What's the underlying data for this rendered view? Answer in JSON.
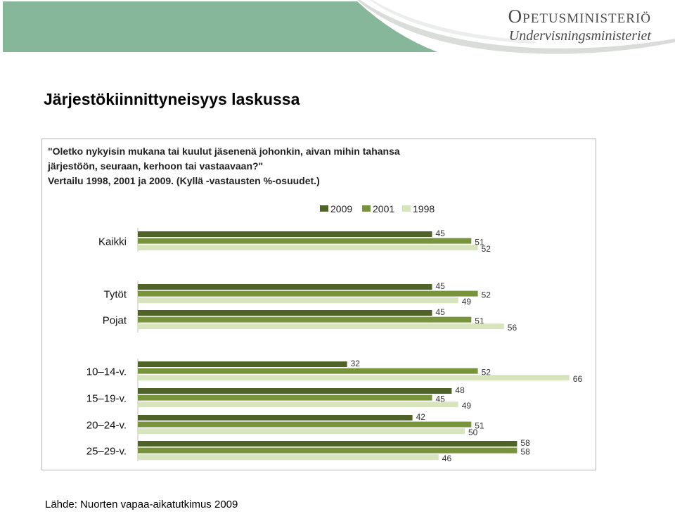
{
  "header": {
    "logo_line1": "Opetusministeriö",
    "logo_line2": "Undervisningsministeriet",
    "banner_color": "#86b79a"
  },
  "title": "Järjestökiinnittyneisyys laskussa",
  "question": {
    "line1": "\"Oletko nykyisin mukana tai kuulut jäsenenä johonkin, aivan mihin tahansa",
    "line2": "järjestöön, seuraan, kerhoon tai vastaavaan?\"",
    "line3": "Vertailu 1998, 2001 ja 2009. (Kyllä -vastausten %-osuudet.)"
  },
  "source": "Lähde: Nuorten vapaa-aikatutkimus 2009",
  "chart_data": {
    "type": "bar",
    "orientation": "horizontal",
    "categories": [
      "Kaikki",
      "Tytöt",
      "Pojat",
      "10–14-v.",
      "15–19-v.",
      "20–24-v.",
      "25–29-v."
    ],
    "groups": [
      [
        "Kaikki"
      ],
      [
        "Tytöt",
        "Pojat"
      ],
      [
        "10–14-v.",
        "15–19-v.",
        "20–24-v.",
        "25–29-v."
      ]
    ],
    "series": [
      {
        "name": "2009",
        "color": "#4f6228",
        "values": [
          45,
          45,
          45,
          32,
          48,
          42,
          58
        ]
      },
      {
        "name": "2001",
        "color": "#77933c",
        "values": [
          51,
          52,
          51,
          52,
          45,
          51,
          58
        ]
      },
      {
        "name": "1998",
        "color": "#d7e4bd",
        "values": [
          52,
          49,
          56,
          66,
          49,
          50,
          46
        ]
      }
    ],
    "legend_position": "top",
    "grid": false,
    "xlim": [
      0,
      70
    ]
  }
}
